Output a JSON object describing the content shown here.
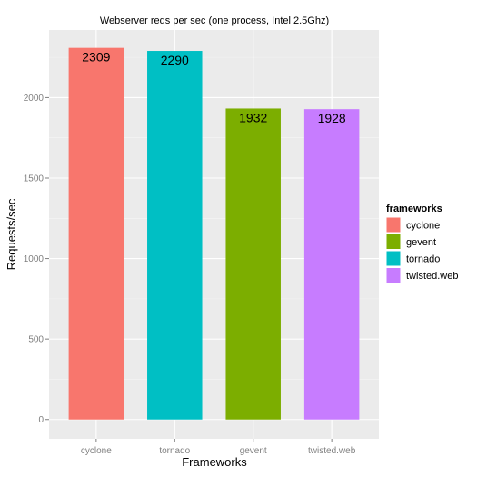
{
  "chart_data": {
    "type": "bar",
    "title": "Webserver reqs per sec (one process, Intel 2.5Ghz)",
    "xlabel": "Frameworks",
    "ylabel": "Requests/sec",
    "categories": [
      "cyclone",
      "tornado",
      "gevent",
      "twisted.web"
    ],
    "values": [
      2309,
      2290,
      1932,
      1928
    ],
    "value_labels": [
      "2309",
      "2290",
      "1932",
      "1928"
    ],
    "ylim": [
      -120,
      2420
    ],
    "yticks": [
      0,
      500,
      1000,
      1500,
      2000
    ],
    "ytick_labels": [
      "0",
      "500",
      "1000",
      "1500",
      "2000"
    ],
    "grid": true,
    "panel_background": "#ebebeb",
    "legend": {
      "title": "frameworks",
      "position": "right",
      "entries": [
        {
          "label": "cyclone",
          "color": "#F8766D"
        },
        {
          "label": "gevent",
          "color": "#7CAE00"
        },
        {
          "label": "tornado",
          "color": "#00BFC4"
        },
        {
          "label": "twisted.web",
          "color": "#C77CFF"
        }
      ]
    },
    "bar_colors": [
      "#F8766D",
      "#00BFC4",
      "#7CAE00",
      "#C77CFF"
    ]
  }
}
